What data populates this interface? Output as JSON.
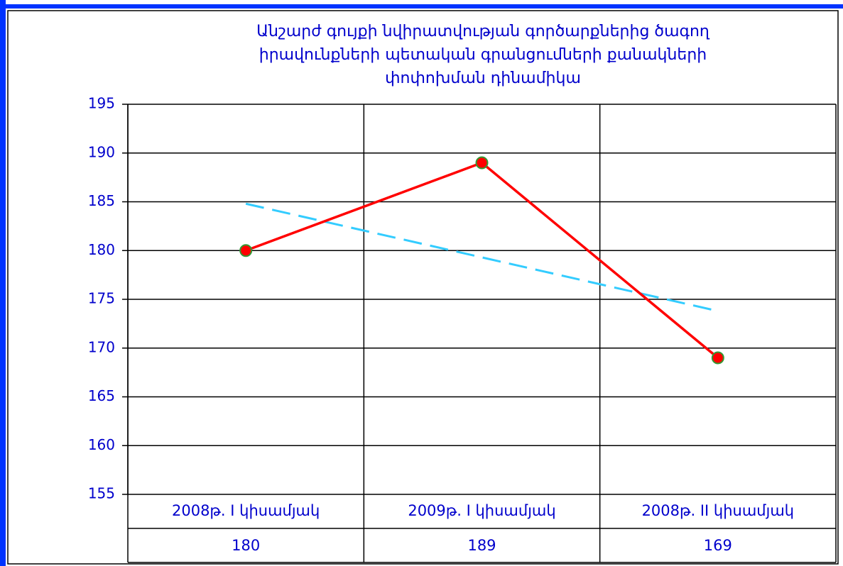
{
  "chart_data": {
    "type": "line",
    "title": [
      "Անշարժ գույքի նվիրատվության գործարքներից ծագող",
      "իրավունքների պետական գրանցումների քանակների",
      "փոփոխման դինամիկա"
    ],
    "categories": [
      "2008թ. I կիսամյակ",
      "2009թ. I կիսամյակ",
      "2008թ. II կիսամյակ"
    ],
    "series": [
      {
        "color": "#ff0000",
        "marker_color": "#ff0000",
        "marker_edge": "#339933",
        "values": [
          180,
          189,
          169
        ]
      }
    ],
    "trendline": {
      "color": "#33ccff",
      "dashed": true,
      "values": [
        184.8,
        179.3,
        173.8
      ]
    },
    "ylim": [
      155,
      195
    ],
    "yticks": [
      155,
      160,
      165,
      170,
      175,
      180,
      185,
      190,
      195
    ],
    "grid": true,
    "data_table": true
  }
}
